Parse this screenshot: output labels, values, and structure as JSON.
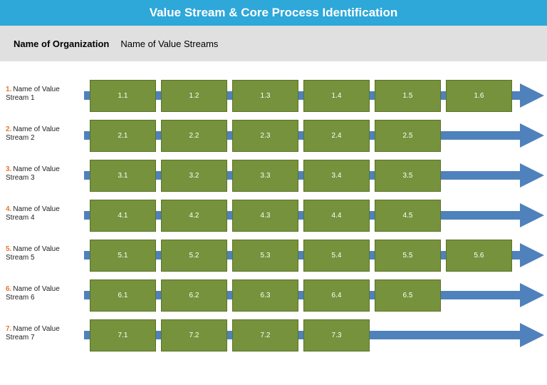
{
  "title": "Value Stream & Core Process Identification",
  "header": {
    "organization": "Name of Organization",
    "value_streams": "Name of Value Streams"
  },
  "colors": {
    "title_bar": "#2ea7d9",
    "header_band": "#e0e0e0",
    "process_box": "#76923c",
    "arrow": "#4f81bd",
    "label_number": "#e8772e"
  },
  "streams": [
    {
      "number": "1.",
      "label_line1": "Name of Value",
      "label_line2": "Stream 1",
      "processes": [
        "1.1",
        "1.2",
        "1.3",
        "1.4",
        "1.5",
        "1.6"
      ]
    },
    {
      "number": "2.",
      "label_line1": "Name of Value",
      "label_line2": "Stream 2",
      "processes": [
        "2.1",
        "2.2",
        "2.3",
        "2.4",
        "2.5"
      ]
    },
    {
      "number": "3.",
      "label_line1": "Name of Value",
      "label_line2": "Stream 3",
      "processes": [
        "3.1",
        "3.2",
        "3.3",
        "3.4",
        "3.5"
      ]
    },
    {
      "number": "4.",
      "label_line1": "Name of Value",
      "label_line2": "Stream 4",
      "processes": [
        "4.1",
        "4.2",
        "4.3",
        "4.4",
        "4.5"
      ]
    },
    {
      "number": "5.",
      "label_line1": "Name of Value",
      "label_line2": "Stream 5",
      "processes": [
        "5.1",
        "5.2",
        "5.3",
        "5.4",
        "5.5",
        "5.6"
      ]
    },
    {
      "number": "6.",
      "label_line1": "Name of Value",
      "label_line2": "Stream 6",
      "processes": [
        "6.1",
        "6.2",
        "6.3",
        "6.4",
        "6.5"
      ]
    },
    {
      "number": "7.",
      "label_line1": "Name of Value",
      "label_line2": "Stream 7",
      "processes": [
        "7.1",
        "7.2",
        "7.2",
        "7.3"
      ]
    }
  ]
}
